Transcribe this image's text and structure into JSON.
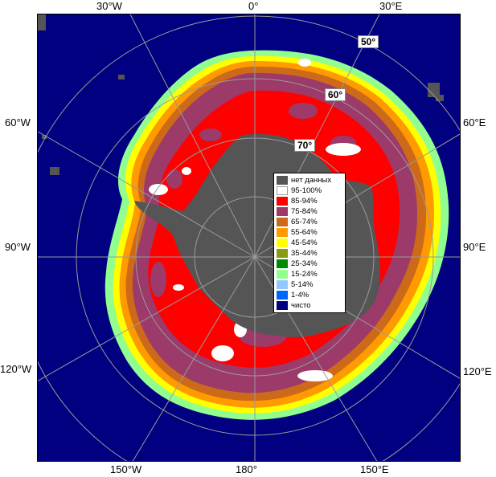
{
  "map": {
    "longitude_labels": {
      "top": [
        "30°W",
        "0°",
        "30°E"
      ],
      "bottom": [
        "150°W",
        "180°",
        "150°E"
      ],
      "left": [
        "60°W",
        "90°W",
        "120°W"
      ],
      "right": [
        "60°E",
        "90°E",
        "120°E"
      ]
    },
    "latitude_labels": [
      "50°",
      "60°",
      "70°"
    ],
    "colors": {
      "ocean": "#000080",
      "land": "#555555",
      "graticule": "#9a9a9a"
    }
  },
  "legend": {
    "items": [
      {
        "label": "нет данных",
        "color": "#555555"
      },
      {
        "label": "95-100%",
        "color": "#ffffff"
      },
      {
        "label": "85-94%",
        "color": "#ff0000"
      },
      {
        "label": "75-84%",
        "color": "#9c3a6a"
      },
      {
        "label": "65-74%",
        "color": "#cc6a1a"
      },
      {
        "label": "55-64%",
        "color": "#ff9a00"
      },
      {
        "label": "45-54%",
        "color": "#ffff00"
      },
      {
        "label": "35-44%",
        "color": "#8a9a10"
      },
      {
        "label": "25-34%",
        "color": "#008a00"
      },
      {
        "label": "15-24%",
        "color": "#90ff90"
      },
      {
        "label": "5-14%",
        "color": "#90c8ff"
      },
      {
        "label": "1-4%",
        "color": "#0064ff"
      },
      {
        "label": "чисто",
        "color": "#000080"
      }
    ]
  }
}
